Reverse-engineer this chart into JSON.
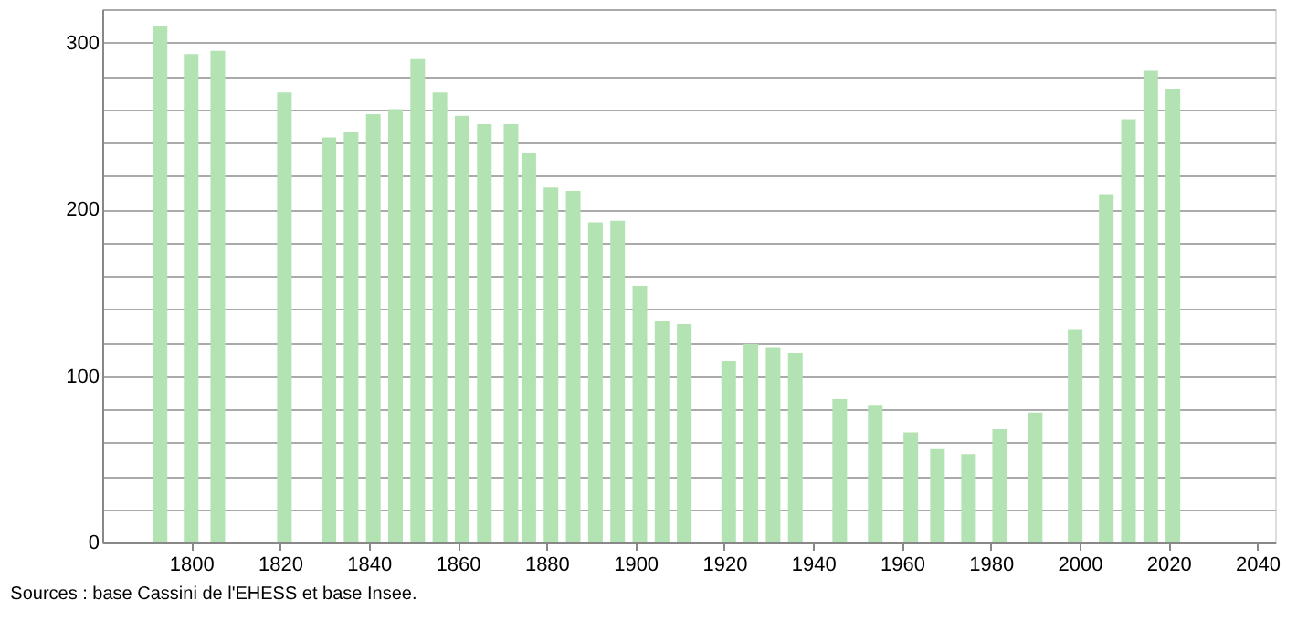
{
  "chart_data": {
    "type": "bar",
    "x": [
      1793,
      1800,
      1806,
      1821,
      1831,
      1836,
      1841,
      1846,
      1851,
      1856,
      1861,
      1866,
      1872,
      1876,
      1881,
      1886,
      1891,
      1896,
      1901,
      1906,
      1911,
      1921,
      1926,
      1931,
      1936,
      1946,
      1954,
      1962,
      1968,
      1975,
      1982,
      1990,
      1999,
      2006,
      2011,
      2016,
      2021
    ],
    "values": [
      310,
      293,
      295,
      270,
      243,
      246,
      257,
      260,
      290,
      270,
      256,
      251,
      251,
      234,
      213,
      211,
      192,
      193,
      154,
      133,
      131,
      109,
      119,
      117,
      114,
      86,
      82,
      66,
      56,
      53,
      68,
      78,
      128,
      209,
      254,
      283,
      272
    ],
    "color": "#b3e3b3",
    "xlim": [
      1780,
      2044
    ],
    "xticks": [
      1800,
      1820,
      1840,
      1860,
      1880,
      1900,
      1920,
      1940,
      1960,
      1980,
      2000,
      2020,
      2040
    ],
    "ylim": [
      0,
      320
    ],
    "yticks": [
      0,
      {
        "value": 20,
        "label": null
      },
      {
        "value": 40,
        "label": null
      },
      {
        "value": 60,
        "label": null
      },
      {
        "value": 80,
        "label": null
      },
      100,
      {
        "value": 120,
        "label": null
      },
      {
        "value": 140,
        "label": null
      },
      {
        "value": 160,
        "label": null
      },
      {
        "value": 180,
        "label": null
      },
      200,
      {
        "value": 220,
        "label": null
      },
      {
        "value": 240,
        "label": null
      },
      {
        "value": 260,
        "label": null
      },
      {
        "value": 280,
        "label": null
      },
      300,
      {
        "value": 320,
        "label": null
      }
    ],
    "grid": "y",
    "annotations": [
      "Sources : base Cassini de l'EHESS et base Insee."
    ]
  }
}
